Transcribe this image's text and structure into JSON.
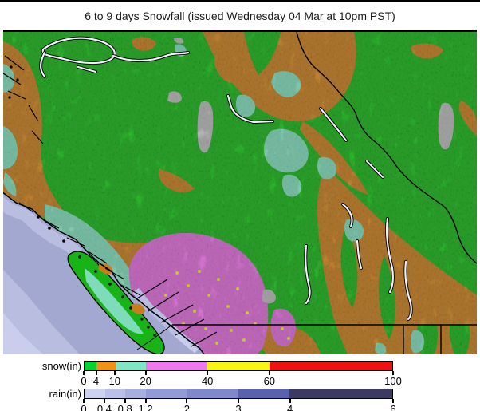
{
  "title": "6 to 9 days Snowfall (issued Wednesday 04 Mar at 10pm PST)",
  "legend": {
    "snow": {
      "label": "snow(in)",
      "max": 100,
      "ticks": [
        0,
        4,
        10,
        20,
        40,
        60,
        100
      ],
      "segments": [
        {
          "from": 0,
          "to": 4,
          "color": "#00d52f"
        },
        {
          "from": 4,
          "to": 10,
          "color": "#f29118"
        },
        {
          "from": 10,
          "to": 20,
          "color": "#7fe7c4"
        },
        {
          "from": 20,
          "to": 40,
          "color": "#f078ee"
        },
        {
          "from": 40,
          "to": 60,
          "color": "#f8f512"
        },
        {
          "from": 60,
          "to": 100,
          "color": "#f01111"
        }
      ]
    },
    "rain": {
      "label": "rain(in)",
      "max": 6,
      "ticks": [
        0,
        0.4,
        0.8,
        1.2,
        2,
        3,
        4,
        6
      ],
      "segments": [
        {
          "from": 0,
          "to": 0.4,
          "color": "#cdd2ef"
        },
        {
          "from": 0.4,
          "to": 0.8,
          "color": "#bac0e8"
        },
        {
          "from": 0.8,
          "to": 1.2,
          "color": "#a7afdf"
        },
        {
          "from": 1.2,
          "to": 2,
          "color": "#929bd5"
        },
        {
          "from": 2,
          "to": 3,
          "color": "#7e88cb"
        },
        {
          "from": 3,
          "to": 4,
          "color": "#5a61ad"
        },
        {
          "from": 4,
          "to": 6,
          "color": "#3d3a62"
        }
      ]
    }
  },
  "map": {
    "description": "Relief map of southern British Columbia and western Alberta shaded by forecast snowfall; ocean shaded by forecast rain",
    "colors": {
      "land_green": "#17b317",
      "orange_4_10": "#c67d1e",
      "teal_10_20": "#7fdcba",
      "magenta_20_40": "#df6cda",
      "yellow_40_60": "#efec28",
      "glacier_gray": "#b9b9b9",
      "ocean_mid": "#a3a8d1",
      "ocean_light": "#b9bee1",
      "ocean_lightest": "#cacdeb",
      "lake_fill": "#eef0fa",
      "line_black": "#000000"
    }
  }
}
